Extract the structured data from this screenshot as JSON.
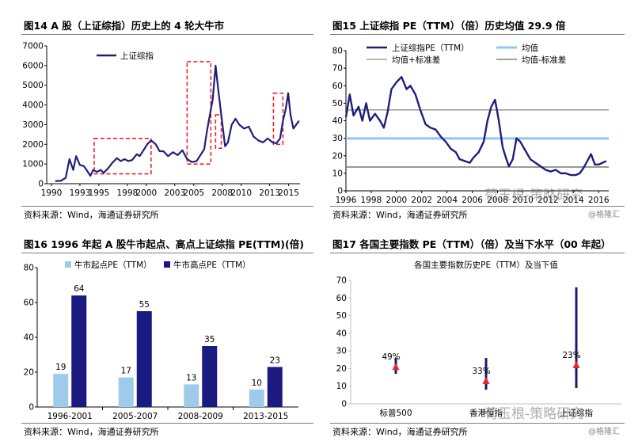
{
  "chart_data": [
    {
      "id": "c14",
      "type": "line",
      "title": "图14 A 股（上证综指）历史上的 4 轮大牛市",
      "source": "资料来源：Wind，海通证券研究所",
      "xlabel": "",
      "ylabel": "",
      "xlim": [
        1990,
        2016.7
      ],
      "ylim": [
        0,
        7000
      ],
      "yticks": [
        "0",
        "1000",
        "2000",
        "3000",
        "4000",
        "5000",
        "6000",
        "7000"
      ],
      "xticks": [
        "1990",
        "1993",
        "1995",
        "1998",
        "2000",
        "2003",
        "2005",
        "2008",
        "2010",
        "2013",
        "2015"
      ],
      "legend": "上证综指",
      "series": [
        {
          "name": "上证综指",
          "color": "#1f1f7a",
          "x": [
            1990.9,
            1991.5,
            1992.0,
            1992.4,
            1992.8,
            1993.1,
            1993.5,
            1993.9,
            1994.2,
            1994.6,
            1994.9,
            1995.3,
            1995.7,
            1996.0,
            1996.5,
            1996.9,
            1997.4,
            1997.8,
            1998.2,
            1998.6,
            1999.0,
            1999.5,
            1999.8,
            2000.2,
            2000.6,
            2001.0,
            2001.5,
            2001.9,
            2002.3,
            2002.8,
            2003.3,
            2003.8,
            2004.3,
            2004.8,
            2005.3,
            2005.8,
            2006.2,
            2006.6,
            2006.9,
            2007.2,
            2007.5,
            2007.8,
            2008.1,
            2008.4,
            2008.8,
            2009.1,
            2009.5,
            2009.9,
            2010.3,
            2010.8,
            2011.3,
            2011.8,
            2012.3,
            2012.8,
            2013.3,
            2013.8,
            2014.2,
            2014.6,
            2014.9,
            2015.2,
            2015.45,
            2015.7,
            2016.0,
            2016.3,
            2016.6
          ],
          "values": [
            130,
            150,
            300,
            1250,
            700,
            1400,
            950,
            900,
            700,
            400,
            700,
            600,
            700,
            550,
            800,
            1050,
            1300,
            1150,
            1250,
            1150,
            1200,
            1500,
            1400,
            1700,
            2000,
            2200,
            2000,
            1650,
            1650,
            1400,
            1600,
            1450,
            1700,
            1250,
            1100,
            1150,
            1450,
            1750,
            2700,
            3500,
            4300,
            6000,
            4700,
            3500,
            1900,
            2100,
            3000,
            3300,
            3000,
            2800,
            2900,
            2400,
            2200,
            2100,
            2300,
            2100,
            2050,
            2300,
            3200,
            3800,
            4600,
            3500,
            2800,
            3000,
            3200
          ]
        }
      ],
      "highlight_boxes": [
        {
          "x": [
            1995.0,
            2001.0
          ],
          "y": [
            500,
            2300
          ]
        },
        {
          "x": [
            2004.8,
            2007.3
          ],
          "y": [
            1000,
            6200
          ]
        },
        {
          "x": [
            2007.8,
            2008.4
          ],
          "y": [
            1800,
            3500
          ]
        },
        {
          "x": [
            2013.9,
            2014.9
          ],
          "y": [
            2000,
            4600
          ]
        }
      ]
    },
    {
      "id": "c15",
      "type": "line",
      "title": "图15 上证综指 PE（TTM）（倍）历史均值 29.9 倍",
      "source": "资料来源：Wind，海通证券研究所",
      "xlim": [
        1996,
        2016.8
      ],
      "ylim": [
        0,
        80
      ],
      "yticks": [
        "0",
        "10",
        "20",
        "30",
        "40",
        "50",
        "60",
        "70",
        "80"
      ],
      "xticks": [
        "1996",
        "1998",
        "2000",
        "2002",
        "2004",
        "2006",
        "2008",
        "2010",
        "2012",
        "2014",
        "2016"
      ],
      "legend": [
        "上证综指PE（TTM）",
        "均值",
        "均值+标准差",
        "均值-标准差"
      ],
      "mean": 29.9,
      "mean_plus_std": 46.2,
      "mean_minus_std": 13.6,
      "series": [
        {
          "name": "上证综指PE（TTM）",
          "color": "#1f1f7a",
          "x": [
            1996.0,
            1996.3,
            1996.6,
            1997.0,
            1997.3,
            1997.6,
            1997.9,
            1998.3,
            1998.7,
            1999.0,
            1999.3,
            1999.6,
            2000.0,
            2000.4,
            2000.8,
            2001.1,
            2001.5,
            2001.9,
            2002.3,
            2002.7,
            2003.1,
            2003.5,
            2003.9,
            2004.3,
            2004.7,
            2005.0,
            2005.4,
            2005.8,
            2006.1,
            2006.5,
            2006.9,
            2007.2,
            2007.5,
            2007.8,
            2008.1,
            2008.4,
            2008.7,
            2008.9,
            2009.2,
            2009.5,
            2009.8,
            2010.2,
            2010.6,
            2011.0,
            2011.4,
            2011.8,
            2012.2,
            2012.6,
            2013.0,
            2013.4,
            2013.8,
            2014.2,
            2014.5,
            2014.8,
            2015.1,
            2015.4,
            2015.7,
            2016.0,
            2016.3,
            2016.6
          ],
          "values": [
            42,
            55,
            43,
            48,
            40,
            50,
            40,
            44,
            40,
            36,
            45,
            58,
            62,
            65,
            58,
            60,
            55,
            46,
            38,
            36,
            35,
            31,
            28,
            24,
            22,
            18,
            17,
            16,
            19,
            22,
            28,
            40,
            48,
            52,
            40,
            25,
            18,
            14,
            18,
            30,
            28,
            23,
            18,
            16,
            14,
            12,
            11,
            12,
            10,
            10,
            9,
            9,
            10,
            13,
            17,
            21,
            15,
            15,
            16,
            17
          ]
        }
      ]
    },
    {
      "id": "c16",
      "type": "bar",
      "title": "图16 1996 年起 A 股牛市起点、高点上证综指 PE(TTM)(倍)",
      "source": "资料来源：Wind，海通证券研究所",
      "ylim": [
        0,
        80
      ],
      "yticks": [
        "0",
        "20",
        "40",
        "60",
        "80"
      ],
      "categories": [
        "1996-2001",
        "2005-2007",
        "2008-2009",
        "2013-2015"
      ],
      "series": [
        {
          "name": "牛市起点PE（TTM）",
          "color": "#9fcbea",
          "values": [
            19,
            17,
            13,
            10
          ],
          "labels": [
            "19",
            "17",
            "13",
            "10"
          ]
        },
        {
          "name": "牛市高点PE（TTM）",
          "color": "#1a1a80",
          "values": [
            64,
            55,
            35,
            23
          ],
          "labels": [
            "64",
            "55",
            "35",
            "23"
          ]
        }
      ]
    },
    {
      "id": "c17",
      "type": "range",
      "title": "图17 各国主要指数 PE（TTM）（倍）及当下水平（00 年起）",
      "subtitle": "各国主要指数历史PE（TTM）及当下值",
      "source": "资料来源：Wind，海通证券研究所",
      "ylim": [
        0,
        70
      ],
      "yticks": [
        "0",
        "10",
        "20",
        "30",
        "40",
        "50",
        "60",
        "70"
      ],
      "categories": [
        "标普500",
        "香港恒指",
        "上证综指"
      ],
      "ranges": [
        [
          17,
          26
        ],
        [
          8,
          26
        ],
        [
          9,
          66
        ]
      ],
      "current": [
        21,
        13,
        22
      ],
      "pct_labels": [
        "49%",
        "33%",
        "23%"
      ]
    }
  ],
  "watermark": {
    "overlay_text": "荀玉根-策略研究",
    "corner_text": "@格隆汇"
  }
}
